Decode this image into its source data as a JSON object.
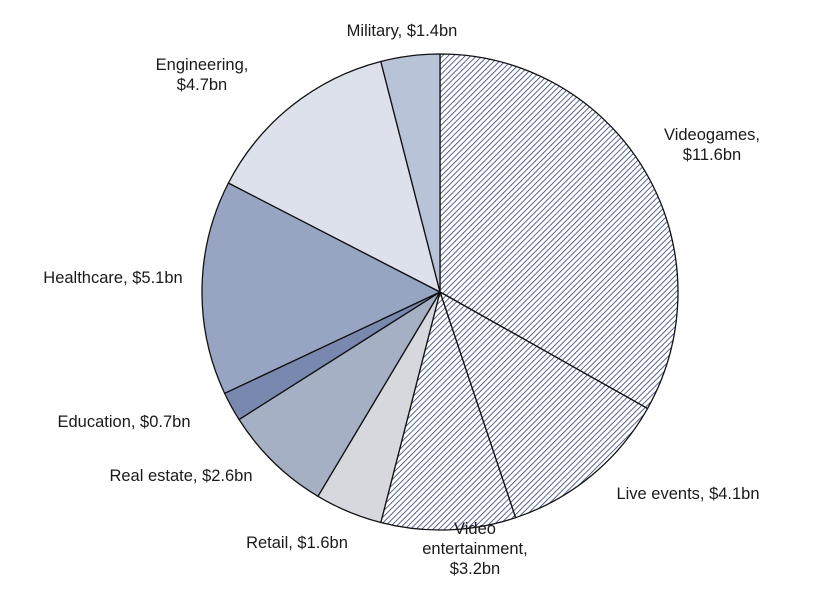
{
  "chart_data": {
    "type": "pie",
    "start": "12 o'clock",
    "direction": "clockwise",
    "slices": [
      {
        "label": [
          "Videogames,",
          "$11.6bn"
        ],
        "value": 11.6,
        "fill": "hatch",
        "color": "#2e3f73"
      },
      {
        "label": [
          "Live events, $4.1bn"
        ],
        "value": 4.1,
        "fill": "hatch",
        "color": "#2e3f73"
      },
      {
        "label": [
          "Video",
          "entertainment,",
          "$3.2bn"
        ],
        "value": 3.2,
        "fill": "hatch",
        "color": "#2e3f73"
      },
      {
        "label": [
          "Retail, $1.6bn"
        ],
        "value": 1.6,
        "fill": "solid",
        "color": "#d6d8dd"
      },
      {
        "label": [
          "Real estate, $2.6bn"
        ],
        "value": 2.6,
        "fill": "solid",
        "color": "#a6b0c5"
      },
      {
        "label": [
          "Education, $0.7bn"
        ],
        "value": 0.7,
        "fill": "solid",
        "color": "#7888ae"
      },
      {
        "label": [
          "Healthcare, $5.1bn"
        ],
        "value": 5.1,
        "fill": "solid",
        "color": "#97a5c3"
      },
      {
        "label": [
          "Engineering,",
          "$4.7bn"
        ],
        "value": 4.7,
        "fill": "solid",
        "color": "#dde1ec"
      },
      {
        "label": [
          "Military, $1.4bn"
        ],
        "value": 1.4,
        "fill": "solid",
        "color": "#b9c3d8"
      }
    ]
  }
}
